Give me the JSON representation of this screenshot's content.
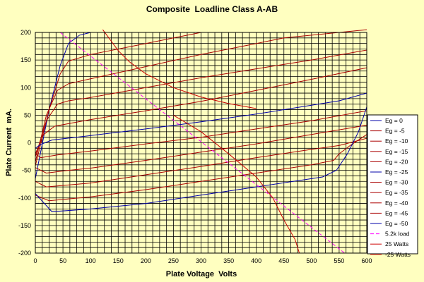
{
  "chart_data": {
    "type": "line",
    "title": "Composite  Loadline Class A-AB",
    "xlabel": "Plate Voltage  Volts",
    "ylabel": "Plate Current  mA.",
    "xlim": [
      0,
      600
    ],
    "ylim": [
      -200,
      200
    ],
    "x_major_ticks": [
      0,
      50,
      100,
      150,
      200,
      250,
      300,
      350,
      400,
      450,
      500,
      550,
      600
    ],
    "y_major_ticks": [
      -200,
      -150,
      -100,
      -50,
      0,
      50,
      100,
      150,
      200
    ],
    "x_minor_step": 12.5,
    "y_minor_step": 10,
    "grid": true,
    "legend_position": "right",
    "series": [
      {
        "name": "Eg = 0",
        "color": "#0000aa",
        "points": [
          [
            0,
            -65
          ],
          [
            25,
            60
          ],
          [
            45,
            140
          ],
          [
            60,
            180
          ],
          [
            80,
            195
          ],
          [
            100,
            200
          ],
          [
            185,
            200
          ]
        ]
      },
      {
        "name": "Eg = -5",
        "color": "#aa0000",
        "points": [
          [
            0,
            -42
          ],
          [
            25,
            60
          ],
          [
            45,
            125
          ],
          [
            60,
            148
          ],
          [
            100,
            160
          ],
          [
            200,
            180
          ],
          [
            300,
            200
          ]
        ]
      },
      {
        "name": "Eg = -10",
        "color": "#aa0000",
        "points": [
          [
            0,
            -35
          ],
          [
            20,
            50
          ],
          [
            40,
            95
          ],
          [
            60,
            107
          ],
          [
            100,
            116
          ],
          [
            200,
            138
          ],
          [
            300,
            160
          ],
          [
            400,
            180
          ],
          [
            450,
            190
          ],
          [
            600,
            205
          ]
        ]
      },
      {
        "name": "Eg = -15",
        "color": "#aa0000",
        "points": [
          [
            0,
            -25
          ],
          [
            20,
            40
          ],
          [
            40,
            70
          ],
          [
            60,
            76
          ],
          [
            100,
            82
          ],
          [
            200,
            100
          ],
          [
            300,
            118
          ],
          [
            400,
            134
          ],
          [
            500,
            150
          ],
          [
            600,
            168
          ]
        ]
      },
      {
        "name": "Eg = -20",
        "color": "#aa0000",
        "points": [
          [
            0,
            -20
          ],
          [
            15,
            15
          ],
          [
            35,
            30
          ],
          [
            100,
            42
          ],
          [
            200,
            58
          ],
          [
            300,
            75
          ],
          [
            400,
            95
          ],
          [
            500,
            115
          ],
          [
            600,
            136
          ]
        ]
      },
      {
        "name": "Eg = -25",
        "color": "#0000aa",
        "points": [
          [
            0,
            -10
          ],
          [
            10,
            -3
          ],
          [
            30,
            5
          ],
          [
            100,
            13
          ],
          [
            200,
            25
          ],
          [
            300,
            38
          ],
          [
            400,
            52
          ],
          [
            500,
            68
          ],
          [
            550,
            76
          ],
          [
            600,
            90
          ]
        ]
      },
      {
        "name": "Eg = -30",
        "color": "#aa0000",
        "points": [
          [
            0,
            -20
          ],
          [
            10,
            -27
          ],
          [
            40,
            -22
          ],
          [
            100,
            -15
          ],
          [
            200,
            -2
          ],
          [
            300,
            10
          ],
          [
            400,
            25
          ],
          [
            500,
            40
          ],
          [
            600,
            58
          ]
        ]
      },
      {
        "name": "Eg = -35",
        "color": "#aa0000",
        "points": [
          [
            0,
            -45
          ],
          [
            20,
            -55
          ],
          [
            60,
            -50
          ],
          [
            100,
            -46
          ],
          [
            200,
            -32
          ],
          [
            300,
            -17
          ],
          [
            400,
            -2
          ],
          [
            500,
            15
          ],
          [
            600,
            32
          ]
        ]
      },
      {
        "name": "Eg = -40",
        "color": "#aa0000",
        "points": [
          [
            0,
            -70
          ],
          [
            20,
            -80
          ],
          [
            100,
            -73
          ],
          [
            200,
            -58
          ],
          [
            300,
            -43
          ],
          [
            400,
            -27
          ],
          [
            500,
            -12
          ],
          [
            550,
            -5
          ],
          [
            600,
            8
          ]
        ]
      },
      {
        "name": "Eg = -45",
        "color": "#aa0000",
        "points": [
          [
            0,
            -95
          ],
          [
            25,
            -105
          ],
          [
            100,
            -98
          ],
          [
            200,
            -85
          ],
          [
            300,
            -70
          ],
          [
            400,
            -55
          ],
          [
            500,
            -40
          ],
          [
            540,
            -32
          ],
          [
            550,
            -20
          ],
          [
            570,
            -5
          ],
          [
            600,
            15
          ]
        ]
      },
      {
        "name": "Eg = -50",
        "color": "#0000aa",
        "points": [
          [
            0,
            -92
          ],
          [
            30,
            -125
          ],
          [
            100,
            -120
          ],
          [
            200,
            -110
          ],
          [
            300,
            -95
          ],
          [
            400,
            -80
          ],
          [
            500,
            -65
          ],
          [
            520,
            -62
          ],
          [
            545,
            -50
          ],
          [
            565,
            -20
          ],
          [
            585,
            20
          ],
          [
            600,
            65
          ]
        ]
      },
      {
        "name": "5.2k load",
        "color": "#ff00ff",
        "points": [
          [
            45,
            200
          ],
          [
            560,
            -200
          ]
        ]
      },
      {
        "name": "25 Watts",
        "color": "#cc0000",
        "points": [
          [
            122,
            205
          ],
          [
            150,
            167
          ],
          [
            170,
            147
          ],
          [
            200,
            125
          ],
          [
            250,
            100
          ],
          [
            300,
            83
          ],
          [
            350,
            71
          ],
          [
            400,
            62
          ]
        ]
      },
      {
        "name": "-25 Watts",
        "color": "#cc0000",
        "points": [
          [
            250,
            50
          ],
          [
            300,
            20
          ],
          [
            350,
            -20
          ],
          [
            400,
            -62
          ],
          [
            430,
            -100
          ],
          [
            450,
            -140
          ],
          [
            470,
            -175
          ],
          [
            478,
            -200
          ]
        ]
      }
    ]
  }
}
